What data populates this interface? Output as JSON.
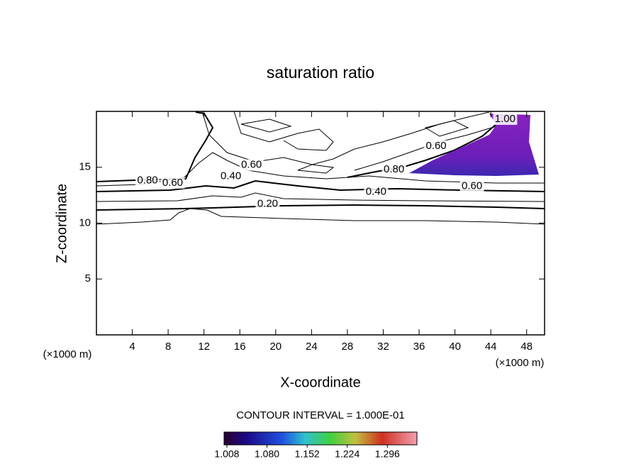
{
  "chart_data": {
    "type": "contour",
    "title": "saturation ratio",
    "x_label": "X-coordinate",
    "y_label": "Z-coordinate",
    "x_unit_left": "(×1000 m)",
    "x_unit_right": "(×1000 m)",
    "xlim": [
      0,
      50
    ],
    "xticks": [
      4,
      8,
      12,
      16,
      20,
      24,
      28,
      32,
      36,
      40,
      44,
      48
    ],
    "ylim": [
      0,
      20
    ],
    "yticks": [
      5,
      10,
      15
    ],
    "contour_labels": [
      {
        "value": 0.8,
        "label": "0.80",
        "x": 5.7,
        "z": 13.8
      },
      {
        "value": 0.6,
        "label": "0.60",
        "x": 8.5,
        "z": 13.6
      },
      {
        "value": 0.4,
        "label": "0.40",
        "x": 15.0,
        "z": 14.2
      },
      {
        "value": 0.6,
        "label": "0.60",
        "x": 17.3,
        "z": 15.2
      },
      {
        "value": 0.2,
        "label": "0.20",
        "x": 19.1,
        "z": 11.7
      },
      {
        "value": 0.4,
        "label": "0.40",
        "x": 31.2,
        "z": 12.8
      },
      {
        "value": 0.6,
        "label": "0.60",
        "x": 41.9,
        "z": 13.3
      },
      {
        "value": 0.8,
        "label": "0.80",
        "x": 33.2,
        "z": 14.8
      },
      {
        "value": 0.6,
        "label": "0.60",
        "x": 37.9,
        "z": 16.9
      },
      {
        "value": 1.0,
        "label": "1.00",
        "x": 45.6,
        "z": 19.3
      }
    ],
    "contour_interval_text": "CONTOUR INTERVAL = 1.000E-01",
    "colorbar": {
      "clim": [
        1.003,
        1.349
      ],
      "ticks": [
        {
          "value": 1.008,
          "label": "1.008"
        },
        {
          "value": 1.08,
          "label": "1.080"
        },
        {
          "value": 1.152,
          "label": "1.152"
        },
        {
          "value": 1.224,
          "label": "1.224"
        },
        {
          "value": 1.296,
          "label": "1.296"
        }
      ]
    }
  }
}
